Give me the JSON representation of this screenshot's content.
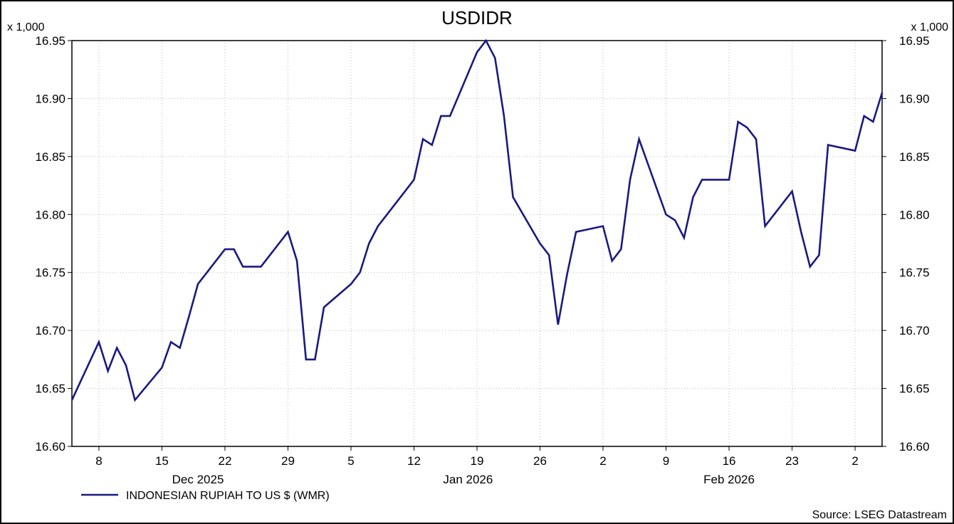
{
  "chart_data": {
    "type": "line",
    "title": "USDIDR",
    "y_unit_left": "x 1,000",
    "y_unit_right": "x 1,000",
    "ylim": [
      16.6,
      16.95
    ],
    "yticks": [
      "16.60",
      "16.65",
      "16.70",
      "16.75",
      "16.80",
      "16.85",
      "16.90",
      "16.95"
    ],
    "x_date_range": [
      "2025-12-05",
      "2026-03-05"
    ],
    "x_day_ticks": [
      {
        "label": "8",
        "date": "2025-12-08"
      },
      {
        "label": "15",
        "date": "2025-12-15"
      },
      {
        "label": "22",
        "date": "2025-12-22"
      },
      {
        "label": "29",
        "date": "2025-12-29"
      },
      {
        "label": "5",
        "date": "2026-01-05"
      },
      {
        "label": "12",
        "date": "2026-01-12"
      },
      {
        "label": "19",
        "date": "2026-01-19"
      },
      {
        "label": "26",
        "date": "2026-01-26"
      },
      {
        "label": "2",
        "date": "2026-02-02"
      },
      {
        "label": "9",
        "date": "2026-02-09"
      },
      {
        "label": "16",
        "date": "2026-02-16"
      },
      {
        "label": "23",
        "date": "2026-02-23"
      },
      {
        "label": "2",
        "date": "2026-03-02"
      }
    ],
    "x_month_labels": [
      {
        "label": "Dec 2025",
        "date": "2025-12-19"
      },
      {
        "label": "Jan 2026",
        "date": "2026-01-18"
      },
      {
        "label": "Feb 2026",
        "date": "2026-02-16"
      }
    ],
    "series": [
      {
        "name": "INDONESIAN RUPIAH TO US $ (WMR)",
        "color": "#1a1a80",
        "x": [
          "2025-12-05",
          "2025-12-08",
          "2025-12-09",
          "2025-12-10",
          "2025-12-11",
          "2025-12-12",
          "2025-12-15",
          "2025-12-16",
          "2025-12-17",
          "2025-12-18",
          "2025-12-19",
          "2025-12-22",
          "2025-12-23",
          "2025-12-24",
          "2025-12-25",
          "2025-12-26",
          "2025-12-29",
          "2025-12-30",
          "2025-12-31",
          "2026-01-01",
          "2026-01-02",
          "2026-01-05",
          "2026-01-06",
          "2026-01-07",
          "2026-01-08",
          "2026-01-09",
          "2026-01-12",
          "2026-01-13",
          "2026-01-14",
          "2026-01-15",
          "2026-01-16",
          "2026-01-19",
          "2026-01-20",
          "2026-01-21",
          "2026-01-22",
          "2026-01-23",
          "2026-01-26",
          "2026-01-27",
          "2026-01-28",
          "2026-01-29",
          "2026-01-30",
          "2026-02-02",
          "2026-02-03",
          "2026-02-04",
          "2026-02-05",
          "2026-02-06",
          "2026-02-09",
          "2026-02-10",
          "2026-02-11",
          "2026-02-12",
          "2026-02-13",
          "2026-02-16",
          "2026-02-17",
          "2026-02-18",
          "2026-02-19",
          "2026-02-20",
          "2026-02-23",
          "2026-02-24",
          "2026-02-25",
          "2026-02-26",
          "2026-02-27",
          "2026-03-02",
          "2026-03-03",
          "2026-03-04",
          "2026-03-05"
        ],
        "values": [
          16.64,
          16.69,
          16.665,
          16.685,
          16.67,
          16.64,
          16.668,
          16.69,
          16.685,
          16.712,
          16.74,
          16.77,
          16.77,
          16.755,
          16.755,
          16.755,
          16.785,
          16.76,
          16.675,
          16.675,
          16.72,
          16.74,
          16.75,
          16.775,
          16.79,
          16.8,
          16.83,
          16.865,
          16.86,
          16.885,
          16.885,
          16.94,
          16.95,
          16.935,
          16.885,
          16.815,
          16.775,
          16.765,
          16.705,
          16.748,
          16.785,
          16.79,
          16.76,
          16.77,
          16.83,
          16.865,
          16.8,
          16.795,
          16.78,
          16.815,
          16.83,
          16.83,
          16.88,
          16.875,
          16.865,
          16.79,
          16.82,
          16.785,
          16.755,
          16.765,
          16.86,
          16.855,
          16.885,
          16.88,
          16.905
        ]
      }
    ],
    "source": "Source: LSEG Datastream",
    "grid": true,
    "legend_placement": "bottom-left"
  }
}
